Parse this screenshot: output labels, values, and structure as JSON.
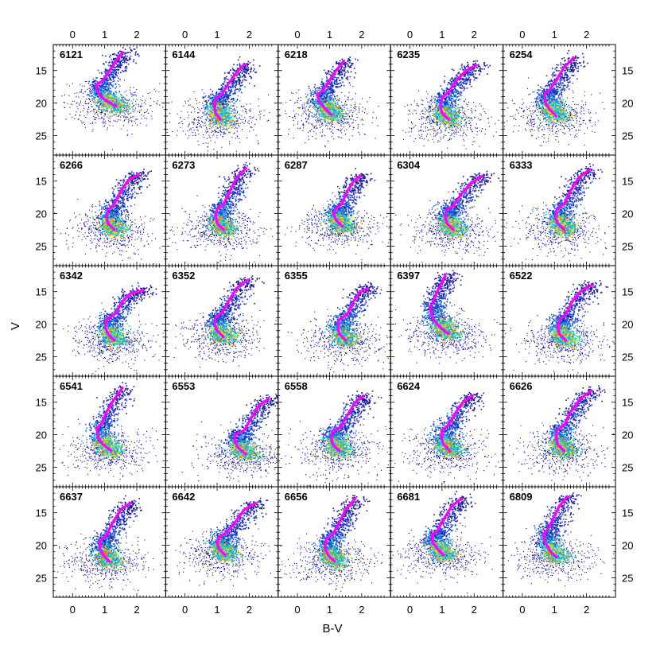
{
  "chart_data": {
    "type": "scatter",
    "description_axis": {
      "xlabel": "B-V",
      "ylabel": "V",
      "xlim": [
        -0.6,
        2.9
      ],
      "ylim": [
        28,
        11
      ],
      "xticks": [
        0,
        1,
        2
      ],
      "yticks": [
        15,
        20,
        25
      ],
      "xtick_labels": [
        "0",
        "1",
        "2"
      ],
      "ytick_labels": [
        "15",
        "20",
        "25"
      ]
    },
    "colors": {
      "isochrone": "#ff00ff",
      "density_low": "#0a0a8c",
      "density_mid": "#00a0ff",
      "density_high": "#ff2000",
      "frame": "#000000"
    },
    "panels": [
      {
        "label": "6121",
        "iso": [
          [
            1.35,
            20.5
          ],
          [
            1.0,
            19.5
          ],
          [
            0.8,
            18.5
          ],
          [
            0.72,
            17.3
          ],
          [
            0.95,
            16.5
          ],
          [
            1.15,
            15.0
          ],
          [
            1.35,
            13.5
          ],
          [
            1.55,
            12.2
          ]
        ]
      },
      {
        "label": "6144",
        "iso": [
          [
            1.1,
            22.5
          ],
          [
            0.95,
            21.5
          ],
          [
            0.9,
            20.2
          ],
          [
            0.95,
            19.3
          ],
          [
            1.15,
            18.6
          ],
          [
            1.35,
            17.0
          ],
          [
            1.6,
            15.3
          ],
          [
            1.85,
            14.0
          ]
        ]
      },
      {
        "label": "6218",
        "iso": [
          [
            1.05,
            21.8
          ],
          [
            0.85,
            20.8
          ],
          [
            0.68,
            19.8
          ],
          [
            0.62,
            18.7
          ],
          [
            0.8,
            18.0
          ],
          [
            1.0,
            16.5
          ],
          [
            1.2,
            15.0
          ],
          [
            1.45,
            13.5
          ]
        ]
      },
      {
        "label": "6235",
        "iso": [
          [
            1.2,
            22.5
          ],
          [
            1.0,
            21.5
          ],
          [
            0.95,
            20.5
          ],
          [
            1.0,
            19.2
          ],
          [
            1.2,
            18.3
          ],
          [
            1.45,
            16.5
          ],
          [
            1.75,
            15.0
          ],
          [
            2.05,
            14.2
          ]
        ]
      },
      {
        "label": "6254",
        "iso": [
          [
            1.05,
            22.0
          ],
          [
            0.85,
            21.0
          ],
          [
            0.7,
            19.8
          ],
          [
            0.68,
            18.6
          ],
          [
            0.85,
            18.0
          ],
          [
            1.05,
            16.5
          ],
          [
            1.3,
            14.5
          ],
          [
            1.6,
            13.0
          ]
        ]
      },
      {
        "label": "6266",
        "iso": [
          [
            1.3,
            22.5
          ],
          [
            1.1,
            21.5
          ],
          [
            1.05,
            20.5
          ],
          [
            1.1,
            19.5
          ],
          [
            1.3,
            18.5
          ],
          [
            1.5,
            16.5
          ],
          [
            1.75,
            14.8
          ],
          [
            2.05,
            14.0
          ]
        ]
      },
      {
        "label": "6273",
        "iso": [
          [
            1.2,
            22.5
          ],
          [
            1.0,
            21.5
          ],
          [
            0.95,
            20.3
          ],
          [
            1.0,
            19.3
          ],
          [
            1.2,
            18.5
          ],
          [
            1.4,
            16.5
          ],
          [
            1.6,
            14.5
          ],
          [
            1.9,
            13.0
          ]
        ]
      },
      {
        "label": "6287",
        "iso": [
          [
            1.4,
            22.0
          ],
          [
            1.2,
            21.0
          ],
          [
            1.12,
            20.0
          ],
          [
            1.18,
            19.3
          ],
          [
            1.38,
            18.5
          ],
          [
            1.55,
            16.5
          ],
          [
            1.75,
            15.0
          ],
          [
            1.95,
            14.2
          ]
        ]
      },
      {
        "label": "6304",
        "iso": [
          [
            1.35,
            22.5
          ],
          [
            1.15,
            21.5
          ],
          [
            1.1,
            20.5
          ],
          [
            1.12,
            19.5
          ],
          [
            1.35,
            18.8
          ],
          [
            1.6,
            17.0
          ],
          [
            1.9,
            15.3
          ],
          [
            2.25,
            14.2
          ]
        ]
      },
      {
        "label": "6333",
        "iso": [
          [
            1.3,
            22.5
          ],
          [
            1.1,
            21.5
          ],
          [
            1.02,
            20.5
          ],
          [
            1.08,
            19.3
          ],
          [
            1.3,
            18.5
          ],
          [
            1.5,
            16.5
          ],
          [
            1.75,
            14.5
          ],
          [
            2.1,
            13.2
          ]
        ]
      },
      {
        "label": "6342",
        "iso": [
          [
            1.3,
            22.5
          ],
          [
            1.1,
            21.5
          ],
          [
            1.02,
            20.5
          ],
          [
            1.05,
            19.3
          ],
          [
            1.35,
            18.3
          ],
          [
            1.55,
            16.5
          ],
          [
            1.8,
            15.3
          ],
          [
            2.2,
            14.8
          ]
        ]
      },
      {
        "label": "6352",
        "iso": [
          [
            1.2,
            22.0
          ],
          [
            1.0,
            21.0
          ],
          [
            0.92,
            20.0
          ],
          [
            0.95,
            19.0
          ],
          [
            1.15,
            18.3
          ],
          [
            1.35,
            16.5
          ],
          [
            1.6,
            14.5
          ],
          [
            1.95,
            13.2
          ]
        ]
      },
      {
        "label": "6355",
        "iso": [
          [
            1.5,
            22.5
          ],
          [
            1.3,
            21.5
          ],
          [
            1.25,
            20.5
          ],
          [
            1.3,
            19.3
          ],
          [
            1.55,
            18.5
          ],
          [
            1.75,
            16.5
          ],
          [
            1.95,
            15.0
          ],
          [
            2.2,
            14.5
          ]
        ]
      },
      {
        "label": "6397",
        "iso": [
          [
            1.2,
            21.5
          ],
          [
            0.95,
            20.5
          ],
          [
            0.72,
            19.3
          ],
          [
            0.62,
            17.5
          ],
          [
            0.72,
            16.5
          ],
          [
            0.85,
            15.0
          ],
          [
            1.0,
            13.5
          ],
          [
            1.1,
            12.5
          ]
        ]
      },
      {
        "label": "6522",
        "iso": [
          [
            1.35,
            22.5
          ],
          [
            1.15,
            21.5
          ],
          [
            1.1,
            20.5
          ],
          [
            1.15,
            19.3
          ],
          [
            1.35,
            18.5
          ],
          [
            1.55,
            16.5
          ],
          [
            1.8,
            15.0
          ],
          [
            2.15,
            14.0
          ]
        ]
      },
      {
        "label": "6541",
        "iso": [
          [
            1.2,
            22.5
          ],
          [
            0.95,
            21.5
          ],
          [
            0.8,
            20.5
          ],
          [
            0.75,
            19.0
          ],
          [
            0.9,
            18.3
          ],
          [
            1.05,
            16.5
          ],
          [
            1.3,
            14.5
          ],
          [
            1.55,
            12.8
          ]
        ]
      },
      {
        "label": "6553",
        "iso": [
          [
            1.9,
            23.0
          ],
          [
            1.65,
            22.0
          ],
          [
            1.55,
            21.0
          ],
          [
            1.55,
            20.0
          ],
          [
            1.85,
            19.3
          ],
          [
            2.05,
            17.5
          ],
          [
            2.3,
            15.5
          ],
          [
            2.6,
            14.5
          ]
        ]
      },
      {
        "label": "6558",
        "iso": [
          [
            1.3,
            22.5
          ],
          [
            1.1,
            21.5
          ],
          [
            1.05,
            20.5
          ],
          [
            1.08,
            19.5
          ],
          [
            1.35,
            18.8
          ],
          [
            1.55,
            17.0
          ],
          [
            1.8,
            15.0
          ],
          [
            2.05,
            14.0
          ]
        ]
      },
      {
        "label": "6624",
        "iso": [
          [
            1.25,
            22.5
          ],
          [
            1.05,
            21.5
          ],
          [
            0.98,
            20.5
          ],
          [
            1.0,
            19.3
          ],
          [
            1.2,
            18.5
          ],
          [
            1.4,
            16.8
          ],
          [
            1.65,
            15.0
          ],
          [
            1.95,
            14.0
          ]
        ]
      },
      {
        "label": "6626",
        "iso": [
          [
            1.3,
            22.5
          ],
          [
            1.1,
            21.5
          ],
          [
            1.05,
            20.5
          ],
          [
            1.08,
            19.3
          ],
          [
            1.3,
            18.5
          ],
          [
            1.5,
            16.5
          ],
          [
            1.8,
            14.5
          ],
          [
            2.15,
            13.2
          ]
        ]
      },
      {
        "label": "6637",
        "iso": [
          [
            1.15,
            22.5
          ],
          [
            0.95,
            21.5
          ],
          [
            0.85,
            20.5
          ],
          [
            0.85,
            19.2
          ],
          [
            1.05,
            18.5
          ],
          [
            1.25,
            16.5
          ],
          [
            1.5,
            14.5
          ],
          [
            1.8,
            13.5
          ]
        ]
      },
      {
        "label": "6642",
        "iso": [
          [
            1.25,
            21.5
          ],
          [
            1.05,
            20.5
          ],
          [
            1.0,
            19.5
          ],
          [
            1.05,
            18.8
          ],
          [
            1.3,
            18.0
          ],
          [
            1.55,
            16.5
          ],
          [
            1.85,
            14.5
          ],
          [
            2.2,
            13.5
          ]
        ]
      },
      {
        "label": "6656",
        "iso": [
          [
            1.15,
            22.5
          ],
          [
            0.95,
            21.5
          ],
          [
            0.85,
            20.3
          ],
          [
            0.9,
            19.0
          ],
          [
            1.1,
            18.3
          ],
          [
            1.3,
            16.5
          ],
          [
            1.5,
            14.5
          ],
          [
            1.8,
            12.8
          ]
        ]
      },
      {
        "label": "6681",
        "iso": [
          [
            1.05,
            21.5
          ],
          [
            0.85,
            20.5
          ],
          [
            0.7,
            19.5
          ],
          [
            0.68,
            18.5
          ],
          [
            0.85,
            17.8
          ],
          [
            1.05,
            16.0
          ],
          [
            1.3,
            14.0
          ],
          [
            1.6,
            12.8
          ]
        ]
      },
      {
        "label": "6809",
        "iso": [
          [
            1.05,
            21.8
          ],
          [
            0.85,
            20.8
          ],
          [
            0.7,
            19.5
          ],
          [
            0.65,
            18.3
          ],
          [
            0.8,
            17.5
          ],
          [
            0.95,
            16.0
          ],
          [
            1.15,
            14.0
          ],
          [
            1.4,
            12.5
          ]
        ]
      }
    ]
  }
}
